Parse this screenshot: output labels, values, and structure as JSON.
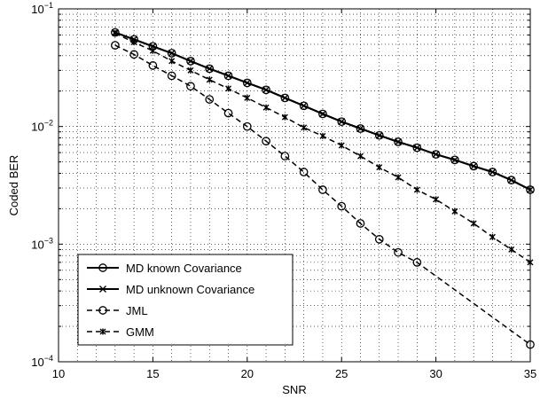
{
  "chart_data": {
    "type": "line",
    "title": "",
    "xlabel": "SNR",
    "ylabel": "Coded BER",
    "xlim": [
      10,
      35
    ],
    "ylim": [
      0.0001,
      0.1
    ],
    "yscale": "log",
    "grid": true,
    "legend_position": "bottom-left",
    "x_ticks": [
      10,
      15,
      20,
      25,
      30,
      35
    ],
    "x_tick_labels": [
      "10",
      "15",
      "20",
      "25",
      "30",
      "35"
    ],
    "y_ticks": [
      0.0001,
      0.001,
      0.01,
      0.1
    ],
    "y_tick_labels": [
      {
        "base": "10",
        "exp": "−4"
      },
      {
        "base": "10",
        "exp": "−3"
      },
      {
        "base": "10",
        "exp": "−2"
      },
      {
        "base": "10",
        "exp": "−1"
      }
    ],
    "x": [
      13,
      14,
      15,
      16,
      17,
      18,
      19,
      20,
      21,
      22,
      23,
      24,
      25,
      26,
      27,
      28,
      29,
      30,
      31,
      32,
      33,
      34,
      35
    ],
    "series": [
      {
        "name": "MD known Covariance",
        "line": "solid",
        "marker": "circle",
        "values": [
          0.063,
          0.055,
          0.048,
          0.042,
          0.036,
          0.031,
          0.027,
          0.0235,
          0.0205,
          0.0175,
          0.015,
          0.0128,
          0.011,
          0.0096,
          0.0084,
          0.0074,
          0.0066,
          0.0058,
          0.0052,
          0.0046,
          0.0041,
          0.0035,
          0.0029
        ]
      },
      {
        "name": "MD unknown Covariance",
        "line": "solid",
        "marker": "x",
        "values": [
          0.063,
          0.055,
          0.048,
          0.042,
          0.036,
          0.031,
          0.027,
          0.0235,
          0.0205,
          0.0175,
          0.015,
          0.0128,
          0.011,
          0.0096,
          0.0084,
          0.0074,
          0.0066,
          0.0058,
          0.0052,
          0.0046,
          0.0041,
          0.0035,
          0.0029
        ]
      },
      {
        "name": "JML",
        "line": "dashed",
        "marker": "circle",
        "values": [
          0.049,
          0.041,
          0.033,
          0.027,
          0.022,
          0.017,
          0.013,
          0.01,
          0.0075,
          0.0056,
          0.0041,
          0.0029,
          0.0021,
          0.0015,
          0.0011,
          0.00085,
          0.0007,
          null,
          null,
          null,
          null,
          null,
          0.00014
        ]
      },
      {
        "name": "GMM",
        "line": "dashed",
        "marker": "asterisk",
        "values": [
          0.062,
          0.052,
          0.044,
          0.036,
          0.03,
          0.025,
          0.021,
          0.0175,
          0.0145,
          0.012,
          0.0098,
          0.0083,
          0.0069,
          0.0056,
          0.0045,
          0.0037,
          0.0029,
          0.0024,
          0.0019,
          0.0015,
          0.00115,
          0.0009,
          0.0007
        ]
      }
    ],
    "gmm_values_note_placeholder": null
  }
}
